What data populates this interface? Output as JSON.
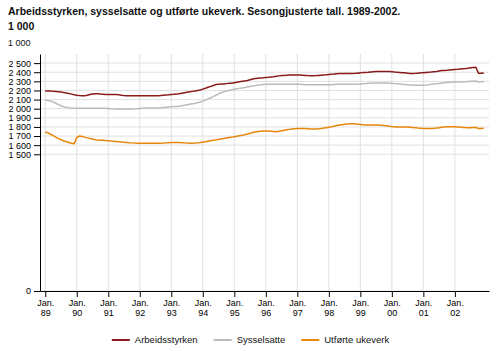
{
  "chart_data": {
    "type": "line",
    "title": "Arbeidsstyrken, sysselsatte og utførte ukeverk. Sesongjusterte tall. 1989-2002.",
    "subtitle": "1 000",
    "ylabel": "1 000",
    "categories": [
      "Jan.\n89",
      null,
      null,
      null,
      null,
      null,
      null,
      null,
      null,
      null,
      null,
      null,
      "Jan.\n90",
      null,
      null,
      null,
      null,
      null,
      null,
      null,
      null,
      null,
      null,
      null,
      "Jan.\n91",
      null,
      null,
      null,
      null,
      null,
      null,
      null,
      null,
      null,
      null,
      null,
      "Jan.\n92",
      null,
      null,
      null,
      null,
      null,
      null,
      null,
      null,
      null,
      null,
      null,
      "Jan.\n93",
      null,
      null,
      null,
      null,
      null,
      null,
      null,
      null,
      null,
      null,
      null,
      "Jan.\n94",
      null,
      null,
      null,
      null,
      null,
      null,
      null,
      null,
      null,
      null,
      null,
      "Jan.\n95",
      null,
      null,
      null,
      null,
      null,
      null,
      null,
      null,
      null,
      null,
      null,
      "Jan.\n96",
      null,
      null,
      null,
      null,
      null,
      null,
      null,
      null,
      null,
      null,
      null,
      "Jan.\n97",
      null,
      null,
      null,
      null,
      null,
      null,
      null,
      null,
      null,
      null,
      null,
      "Jan.\n98",
      null,
      null,
      null,
      null,
      null,
      null,
      null,
      null,
      null,
      null,
      null,
      "Jan.\n99",
      null,
      null,
      null,
      null,
      null,
      null,
      null,
      null,
      null,
      null,
      null,
      "Jan.\n00",
      null,
      null,
      null,
      null,
      null,
      null,
      null,
      null,
      null,
      null,
      null,
      "Jan.\n01",
      null,
      null,
      null,
      null,
      null,
      null,
      null,
      null,
      null,
      null,
      null,
      "Jan.\n02",
      null,
      null,
      null,
      null,
      null,
      null,
      null,
      null,
      null,
      null,
      null
    ],
    "series": [
      {
        "name": "Arbeidsstyrken",
        "color": "#8B1A1A",
        "values": [
          2195,
          2195,
          2193,
          2190,
          2188,
          2185,
          2182,
          2178,
          2173,
          2167,
          2160,
          2153,
          2148,
          2145,
          2143,
          2142,
          2148,
          2155,
          2162,
          2165,
          2163,
          2160,
          2158,
          2155,
          2155,
          2155,
          2155,
          2155,
          2152,
          2148,
          2145,
          2143,
          2143,
          2143,
          2143,
          2143,
          2143,
          2143,
          2143,
          2143,
          2143,
          2143,
          2143,
          2143,
          2145,
          2148,
          2150,
          2152,
          2155,
          2158,
          2162,
          2165,
          2170,
          2175,
          2180,
          2185,
          2190,
          2195,
          2200,
          2205,
          2215,
          2225,
          2235,
          2245,
          2255,
          2265,
          2268,
          2270,
          2272,
          2275,
          2278,
          2280,
          2285,
          2290,
          2295,
          2300,
          2305,
          2310,
          2318,
          2325,
          2330,
          2335,
          2338,
          2340,
          2343,
          2345,
          2348,
          2350,
          2355,
          2360,
          2363,
          2365,
          2368,
          2370,
          2370,
          2370,
          2370,
          2370,
          2368,
          2365,
          2363,
          2362,
          2362,
          2363,
          2365,
          2368,
          2370,
          2372,
          2375,
          2378,
          2380,
          2383,
          2385,
          2387,
          2387,
          2387,
          2387,
          2387,
          2388,
          2390,
          2393,
          2397,
          2398,
          2400,
          2403,
          2405,
          2407,
          2408,
          2408,
          2408,
          2408,
          2408,
          2405,
          2402,
          2400,
          2398,
          2395,
          2393,
          2390,
          2387,
          2387,
          2388,
          2390,
          2393,
          2395,
          2398,
          2400,
          2402,
          2405,
          2408,
          2413,
          2418,
          2420,
          2422,
          2425,
          2428,
          2430,
          2432,
          2435,
          2438,
          2440,
          2443,
          2448,
          2453,
          2455,
          2388,
          2390,
          2392
        ]
      },
      {
        "name": "Sysselsatte",
        "color": "#BBBBBB",
        "values": [
          2095,
          2090,
          2085,
          2075,
          2060,
          2045,
          2032,
          2022,
          2015,
          2010,
          2007,
          2005,
          2005,
          2005,
          2005,
          2005,
          2005,
          2005,
          2005,
          2005,
          2005,
          2005,
          2005,
          2005,
          2003,
          2000,
          1998,
          1997,
          1997,
          1997,
          1997,
          1997,
          1997,
          1997,
          1998,
          2000,
          2003,
          2005,
          2007,
          2008,
          2008,
          2008,
          2008,
          2008,
          2010,
          2012,
          2015,
          2018,
          2020,
          2023,
          2025,
          2028,
          2032,
          2038,
          2043,
          2048,
          2053,
          2058,
          2065,
          2073,
          2083,
          2095,
          2108,
          2120,
          2133,
          2148,
          2162,
          2175,
          2185,
          2193,
          2200,
          2207,
          2213,
          2218,
          2223,
          2228,
          2233,
          2238,
          2243,
          2248,
          2253,
          2258,
          2262,
          2265,
          2267,
          2268,
          2268,
          2268,
          2268,
          2268,
          2268,
          2268,
          2268,
          2268,
          2268,
          2268,
          2268,
          2267,
          2265,
          2263,
          2262,
          2262,
          2262,
          2262,
          2262,
          2262,
          2262,
          2262,
          2262,
          2263,
          2265,
          2267,
          2268,
          2268,
          2268,
          2268,
          2268,
          2268,
          2268,
          2268,
          2270,
          2273,
          2275,
          2278,
          2280,
          2282,
          2283,
          2283,
          2283,
          2283,
          2282,
          2280,
          2278,
          2275,
          2273,
          2270,
          2267,
          2265,
          2262,
          2260,
          2258,
          2258,
          2258,
          2258,
          2258,
          2260,
          2263,
          2267,
          2270,
          2273,
          2277,
          2282,
          2285,
          2288,
          2290,
          2292,
          2293,
          2293,
          2293,
          2293,
          2295,
          2298,
          2300,
          2302,
          2303,
          2293,
          2295,
          2297
        ]
      },
      {
        "name": "Utførte ukeverk",
        "color": "#E8860A",
        "values": [
          1745,
          1735,
          1720,
          1705,
          1688,
          1672,
          1660,
          1648,
          1638,
          1630,
          1622,
          1617,
          1683,
          1700,
          1695,
          1688,
          1680,
          1673,
          1667,
          1660,
          1657,
          1655,
          1653,
          1650,
          1648,
          1645,
          1643,
          1640,
          1637,
          1635,
          1632,
          1630,
          1627,
          1625,
          1623,
          1622,
          1622,
          1622,
          1622,
          1622,
          1622,
          1622,
          1622,
          1622,
          1622,
          1623,
          1625,
          1627,
          1628,
          1628,
          1628,
          1628,
          1627,
          1625,
          1623,
          1622,
          1622,
          1623,
          1625,
          1628,
          1633,
          1638,
          1643,
          1648,
          1653,
          1658,
          1663,
          1668,
          1673,
          1678,
          1683,
          1688,
          1693,
          1698,
          1703,
          1708,
          1715,
          1723,
          1730,
          1738,
          1745,
          1750,
          1753,
          1755,
          1755,
          1755,
          1753,
          1750,
          1748,
          1753,
          1758,
          1763,
          1768,
          1773,
          1778,
          1780,
          1782,
          1783,
          1783,
          1782,
          1780,
          1778,
          1777,
          1778,
          1780,
          1783,
          1787,
          1792,
          1797,
          1802,
          1808,
          1815,
          1820,
          1825,
          1830,
          1833,
          1835,
          1835,
          1833,
          1830,
          1827,
          1823,
          1822,
          1820,
          1820,
          1820,
          1820,
          1820,
          1817,
          1815,
          1812,
          1808,
          1805,
          1803,
          1800,
          1800,
          1800,
          1800,
          1800,
          1797,
          1793,
          1790,
          1787,
          1785,
          1783,
          1782,
          1782,
          1783,
          1785,
          1788,
          1792,
          1797,
          1800,
          1802,
          1803,
          1803,
          1802,
          1800,
          1798,
          1795,
          1793,
          1792,
          1792,
          1793,
          1793,
          1782,
          1783,
          1785
        ]
      }
    ],
    "ylim": [
      0,
      2600
    ],
    "yticks": [
      0,
      {
        "value": 1500,
        "label": "1 500"
      },
      {
        "value": 1600,
        "label": "1 600"
      },
      {
        "value": 1700,
        "label": "1 700"
      },
      {
        "value": 1800,
        "label": "1 800"
      },
      {
        "value": 1900,
        "label": "1 900"
      },
      {
        "value": 2000,
        "label": "2 000"
      },
      {
        "value": 2100,
        "label": "2 100"
      },
      {
        "value": 2200,
        "label": "2 200"
      },
      {
        "value": 2300,
        "label": "2 300"
      },
      {
        "value": 2400,
        "label": "2 400"
      },
      {
        "value": 2500,
        "label": "2 500"
      }
    ],
    "grid": true,
    "legend": "bottom"
  }
}
